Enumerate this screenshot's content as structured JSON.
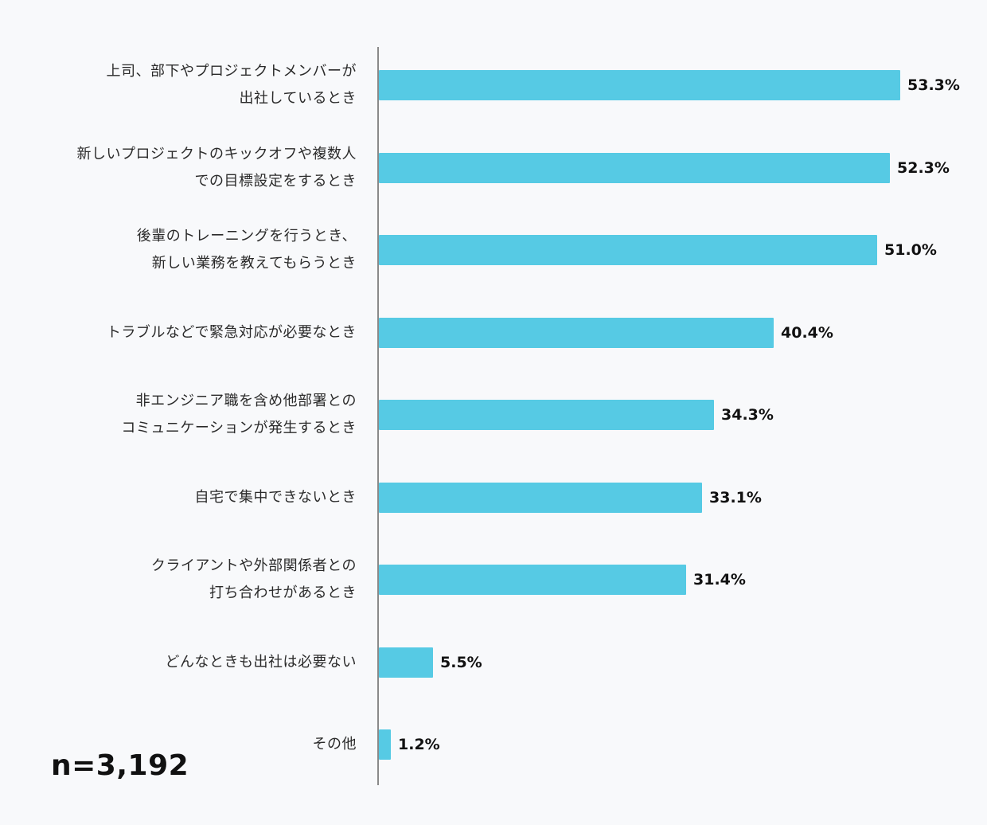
{
  "chart_data": {
    "type": "bar",
    "orientation": "horizontal",
    "categories": [
      [
        "上司、部下やプロジェクトメンバーが",
        "出社しているとき"
      ],
      [
        "新しいプロジェクトのキックオフや複数人",
        "での目標設定をするとき"
      ],
      [
        "後輩のトレーニングを行うとき、",
        "新しい業務を教えてもらうとき"
      ],
      [
        "トラブルなどで緊急対応が必要なとき"
      ],
      [
        "非エンジニア職を含め他部署との",
        "コミュニケーションが発生するとき"
      ],
      [
        "自宅で集中できないとき"
      ],
      [
        "クライアントや外部関係者との",
        "打ち合わせがあるとき"
      ],
      [
        "どんなときも出社は必要ない"
      ],
      [
        "その他"
      ]
    ],
    "values": [
      53.3,
      52.3,
      51.0,
      40.4,
      34.3,
      33.1,
      31.4,
      5.5,
      1.2
    ],
    "value_labels": [
      "53.3%",
      "52.3%",
      "51.0%",
      "40.4%",
      "34.3%",
      "33.1%",
      "31.4%",
      "5.5%",
      "1.2%"
    ],
    "bar_color": "#56cae4",
    "grid": false,
    "legend": "none",
    "annotation": "n=3,192"
  }
}
